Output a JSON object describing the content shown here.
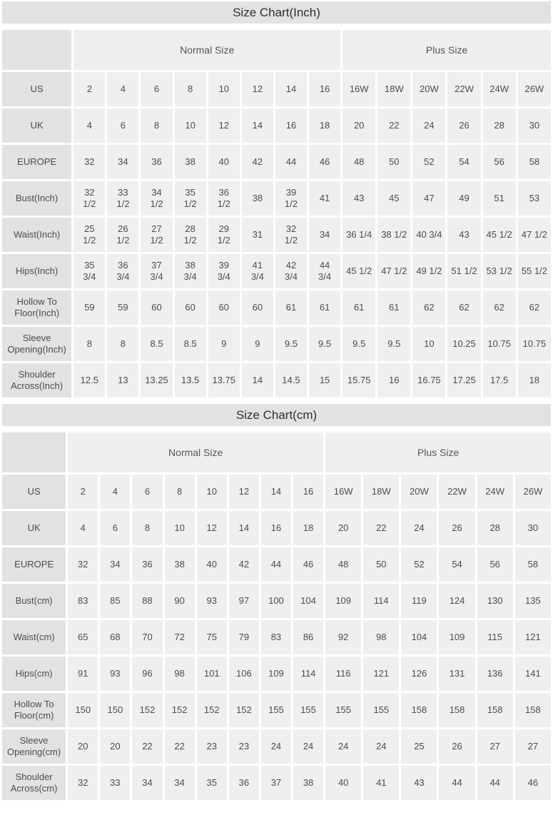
{
  "colors": {
    "title_bar_bg": "#e3e2e2",
    "row_header_bg": "#e3e2e2",
    "data_cell_bg": "#f0efef",
    "gap_color": "#ffffff",
    "title_text": "#2f2f2f",
    "cell_text": "#4c4c4c"
  },
  "chart_data": [
    {
      "type": "table",
      "title": "Size Chart(Inch)",
      "column_groups": [
        {
          "label": "",
          "span": 1
        },
        {
          "label": "Normal Size",
          "span": 8
        },
        {
          "label": "Plus Size",
          "span": 6
        }
      ],
      "rows": [
        {
          "label": "US",
          "values": [
            "2",
            "4",
            "6",
            "8",
            "10",
            "12",
            "14",
            "16",
            "16W",
            "18W",
            "20W",
            "22W",
            "24W",
            "26W"
          ]
        },
        {
          "label": "UK",
          "values": [
            "4",
            "6",
            "8",
            "10",
            "12",
            "14",
            "16",
            "18",
            "20",
            "22",
            "24",
            "26",
            "28",
            "30"
          ]
        },
        {
          "label": "EUROPE",
          "values": [
            "32",
            "34",
            "36",
            "38",
            "40",
            "42",
            "44",
            "46",
            "48",
            "50",
            "52",
            "54",
            "56",
            "58"
          ]
        },
        {
          "label": "Bust(Inch)",
          "values": [
            "32 1/2",
            "33 1/2",
            "34 1/2",
            "35 1/2",
            "36 1/2",
            "38",
            "39 1/2",
            "41",
            "43",
            "45",
            "47",
            "49",
            "51",
            "53"
          ]
        },
        {
          "label": "Waist(Inch)",
          "values": [
            "25 1/2",
            "26 1/2",
            "27 1/2",
            "28 1/2",
            "29 1/2",
            "31",
            "32 1/2",
            "34",
            "36 1/4",
            "38 1/2",
            "40 3/4",
            "43",
            "45 1/2",
            "47 1/2"
          ]
        },
        {
          "label": "Hips(Inch)",
          "values": [
            "35 3/4",
            "36 3/4",
            "37 3/4",
            "38 3/4",
            "39 3/4",
            "41 3/4",
            "42 3/4",
            "44 3/4",
            "45 1/2",
            "47 1/2",
            "49 1/2",
            "51 1/2",
            "53 1/2",
            "55 1/2"
          ]
        },
        {
          "label": "Hollow To Floor(Inch)",
          "values": [
            "59",
            "59",
            "60",
            "60",
            "60",
            "60",
            "61",
            "61",
            "61",
            "61",
            "62",
            "62",
            "62",
            "62"
          ]
        },
        {
          "label": "Sleeve Opening(Inch)",
          "values": [
            "8",
            "8",
            "8.5",
            "8.5",
            "9",
            "9",
            "9.5",
            "9.5",
            "9.5",
            "9.5",
            "10",
            "10.25",
            "10.75",
            "10.75"
          ]
        },
        {
          "label": "Shoulder Across(Inch)",
          "values": [
            "12.5",
            "13",
            "13.25",
            "13.5",
            "13.75",
            "14",
            "14.5",
            "15",
            "15.75",
            "16",
            "16.75",
            "17.25",
            "17.5",
            "18"
          ]
        }
      ]
    },
    {
      "type": "table",
      "title": "Size Chart(cm)",
      "column_groups": [
        {
          "label": "",
          "span": 1
        },
        {
          "label": "Normal Size",
          "span": 8
        },
        {
          "label": "Plus Size",
          "span": 6
        }
      ],
      "rows": [
        {
          "label": "US",
          "values": [
            "2",
            "4",
            "6",
            "8",
            "10",
            "12",
            "14",
            "16",
            "16W",
            "18W",
            "20W",
            "22W",
            "24W",
            "26W"
          ]
        },
        {
          "label": "UK",
          "values": [
            "4",
            "6",
            "8",
            "10",
            "12",
            "14",
            "16",
            "18",
            "20",
            "22",
            "24",
            "26",
            "28",
            "30"
          ]
        },
        {
          "label": "EUROPE",
          "values": [
            "32",
            "34",
            "36",
            "38",
            "40",
            "42",
            "44",
            "46",
            "48",
            "50",
            "52",
            "54",
            "56",
            "58"
          ]
        },
        {
          "label": "Bust(cm)",
          "values": [
            "83",
            "85",
            "88",
            "90",
            "93",
            "97",
            "100",
            "104",
            "109",
            "114",
            "119",
            "124",
            "130",
            "135"
          ]
        },
        {
          "label": "Waist(cm)",
          "values": [
            "65",
            "68",
            "70",
            "72",
            "75",
            "79",
            "83",
            "86",
            "92",
            "98",
            "104",
            "109",
            "115",
            "121"
          ]
        },
        {
          "label": "Hips(cm)",
          "values": [
            "91",
            "93",
            "96",
            "98",
            "101",
            "106",
            "109",
            "114",
            "116",
            "121",
            "126",
            "131",
            "136",
            "141"
          ]
        },
        {
          "label": "Hollow To Floor(cm)",
          "values": [
            "150",
            "150",
            "152",
            "152",
            "152",
            "152",
            "155",
            "155",
            "155",
            "155",
            "158",
            "158",
            "158",
            "158"
          ]
        },
        {
          "label": "Sleeve Opening(cm)",
          "values": [
            "20",
            "20",
            "22",
            "22",
            "23",
            "23",
            "24",
            "24",
            "24",
            "24",
            "25",
            "26",
            "27",
            "27"
          ]
        },
        {
          "label": "Shoulder Across(cm)",
          "values": [
            "32",
            "33",
            "34",
            "34",
            "35",
            "36",
            "37",
            "38",
            "40",
            "41",
            "43",
            "44",
            "44",
            "46"
          ]
        }
      ]
    }
  ]
}
